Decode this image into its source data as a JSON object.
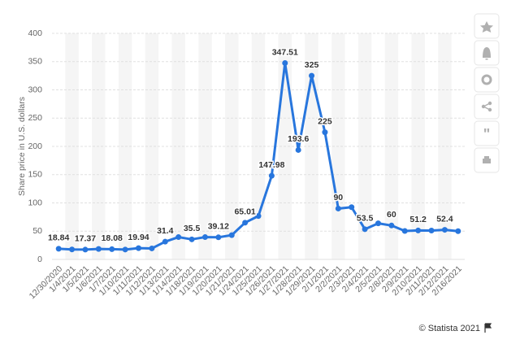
{
  "chart_data": {
    "type": "line",
    "y_label": "Share price in U.S. dollars",
    "categories": [
      "12/30/2020",
      "1/4/2021",
      "1/5/2021",
      "1/6/2021",
      "1/7/2021",
      "1/10/2021",
      "1/11/2021",
      "1/12/2021",
      "1/13/2021",
      "1/14/2021",
      "1/18/2021",
      "1/19/2021",
      "1/20/2021",
      "1/21/2021",
      "1/24/2021",
      "1/25/2021",
      "1/26/2021",
      "1/27/2021",
      "1/28/2021",
      "1/29/2021",
      "2/1/2021",
      "2/2/2021",
      "2/3/2021",
      "2/4/2021",
      "2/5/2021",
      "2/8/2021",
      "2/9/2021",
      "2/10/2021",
      "2/11/2021",
      "2/12/2021",
      "2/16/2021"
    ],
    "series": [
      {
        "name": "Share price",
        "color": "#2876dd",
        "values": [
          18.84,
          17.7,
          17.37,
          18.5,
          18.08,
          17.5,
          19.94,
          19.5,
          31.4,
          39.5,
          35.5,
          39.5,
          39.12,
          43,
          65.01,
          76.8,
          147.98,
          347.51,
          193.6,
          325,
          225,
          90,
          92.4,
          53.5,
          63.8,
          60,
          50.3,
          51.2,
          51.1,
          52.4,
          50
        ],
        "value_labels": [
          "18.84",
          null,
          "17.37",
          null,
          "18.08",
          null,
          "19.94",
          null,
          "31.4",
          null,
          "35.5",
          null,
          "39.12",
          null,
          "65.01",
          null,
          "147.98",
          "347.51",
          "193.6",
          "325",
          "225",
          "90",
          null,
          "53.5",
          null,
          "60",
          null,
          "51.2",
          null,
          "52.4",
          null
        ]
      }
    ],
    "ylim": [
      0,
      400
    ],
    "yticks": [
      0,
      50,
      100,
      150,
      200,
      250,
      300,
      350,
      400
    ],
    "grid": true
  },
  "footer": "© Statista 2021"
}
